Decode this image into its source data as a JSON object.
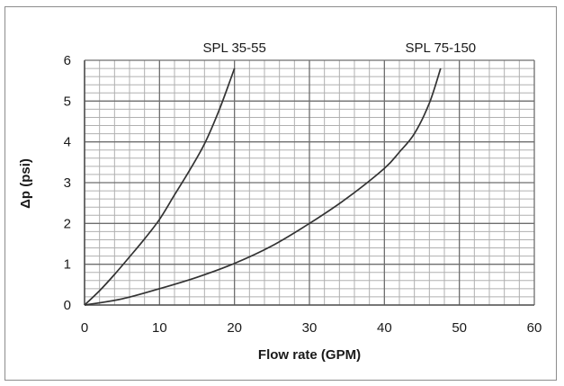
{
  "chart_data": {
    "type": "line",
    "title": "",
    "xlabel": "Flow rate (GPM)",
    "ylabel": "Δp (psi)",
    "xlim": [
      0,
      60
    ],
    "ylim": [
      0,
      6
    ],
    "x_ticks": [
      "0",
      "10",
      "20",
      "30",
      "40",
      "50",
      "60"
    ],
    "y_ticks": [
      "0",
      "1",
      "2",
      "3",
      "4",
      "5",
      "6"
    ],
    "grid": true,
    "line_color": "#333333",
    "series": [
      {
        "name": "SPL 35-55",
        "x": [
          0,
          2,
          4,
          6,
          8,
          10,
          12,
          14,
          16,
          18,
          20
        ],
        "y": [
          0,
          0.35,
          0.75,
          1.18,
          1.62,
          2.1,
          2.7,
          3.3,
          3.95,
          4.8,
          5.8
        ]
      },
      {
        "name": "SPL 75-150",
        "x": [
          0,
          5,
          10,
          15,
          20,
          25,
          30,
          35,
          40,
          42,
          44,
          46,
          47.5
        ],
        "y": [
          0,
          0.15,
          0.4,
          0.68,
          1.02,
          1.45,
          2.0,
          2.62,
          3.35,
          3.75,
          4.2,
          4.95,
          5.8
        ]
      }
    ]
  }
}
